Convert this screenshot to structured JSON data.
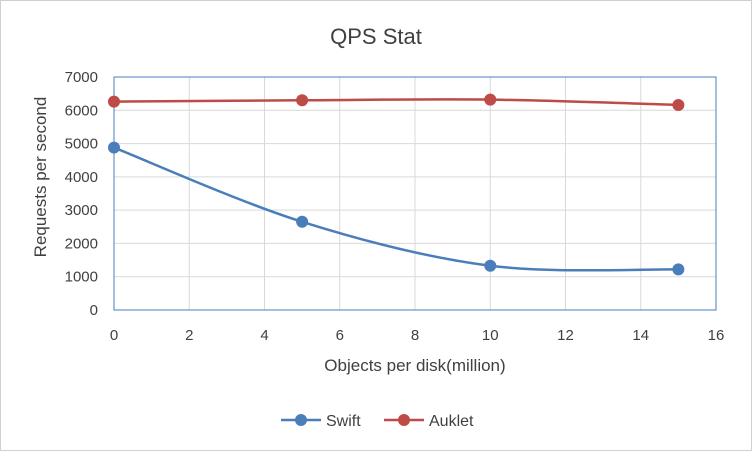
{
  "chart_data": {
    "type": "line",
    "title": "QPS Stat",
    "xlabel": "Objects per disk(million)",
    "ylabel": "Requests per second",
    "xlim": [
      0,
      16
    ],
    "ylim": [
      0,
      7000
    ],
    "xticks": [
      0,
      2,
      4,
      6,
      8,
      10,
      12,
      14,
      16
    ],
    "yticks": [
      0,
      1000,
      2000,
      3000,
      4000,
      5000,
      6000,
      7000
    ],
    "grid": true,
    "legend_position": "bottom",
    "smooth": true,
    "series": [
      {
        "name": "Swift",
        "color": "#4a7ebb",
        "x": [
          0,
          5,
          10,
          15
        ],
        "y": [
          4880,
          2650,
          1330,
          1220
        ]
      },
      {
        "name": "Auklet",
        "color": "#be4b48",
        "x": [
          0,
          5,
          10,
          15
        ],
        "y": [
          6260,
          6300,
          6320,
          6160
        ]
      }
    ]
  }
}
